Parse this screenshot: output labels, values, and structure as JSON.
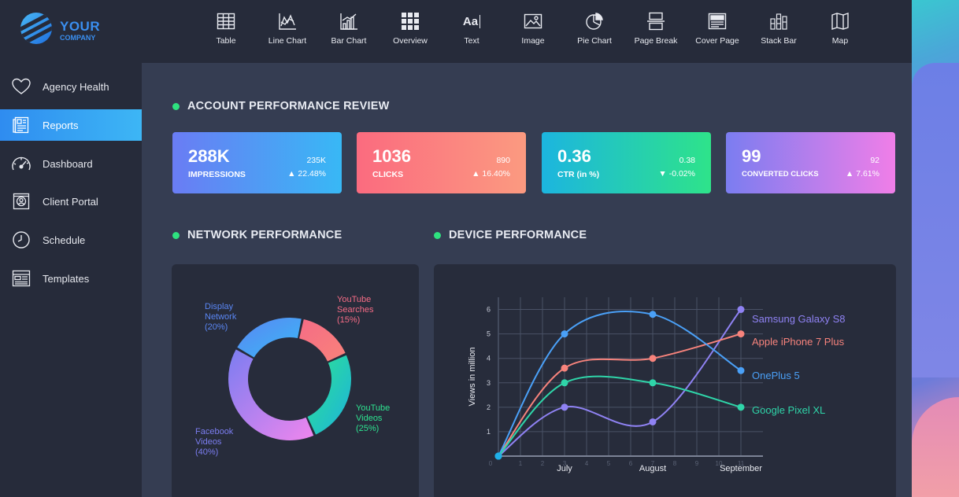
{
  "brand": {
    "line1": "YOUR",
    "line2": "COMPANY"
  },
  "toolbar": [
    {
      "label": "Table",
      "icon": "table-icon"
    },
    {
      "label": "Line Chart",
      "icon": "line-chart-icon"
    },
    {
      "label": "Bar Chart",
      "icon": "bar-chart-icon"
    },
    {
      "label": "Overview",
      "icon": "overview-grid-icon"
    },
    {
      "label": "Text",
      "icon": "text-icon"
    },
    {
      "label": "Image",
      "icon": "image-icon"
    },
    {
      "label": "Pie Chart",
      "icon": "pie-chart-icon"
    },
    {
      "label": "Page Break",
      "icon": "page-break-icon"
    },
    {
      "label": "Cover Page",
      "icon": "cover-page-icon"
    },
    {
      "label": "Stack Bar",
      "icon": "stack-bar-icon"
    },
    {
      "label": "Map",
      "icon": "map-icon"
    }
  ],
  "tool_icon_text": "Aa",
  "sidebar": [
    {
      "label": "Agency Health",
      "icon": "heart-icon"
    },
    {
      "label": "Reports",
      "icon": "reports-icon",
      "active": true
    },
    {
      "label": "Dashboard",
      "icon": "gauge-icon"
    },
    {
      "label": "Client Portal",
      "icon": "portal-icon"
    },
    {
      "label": "Schedule",
      "icon": "clock-icon"
    },
    {
      "label": "Templates",
      "icon": "templates-icon"
    }
  ],
  "sections": {
    "account": "ACCOUNT PERFORMANCE REVIEW",
    "network": "NETWORK PERFORMANCE",
    "device": "DEVICE PERFORMANCE"
  },
  "kpis": [
    {
      "value": "288K",
      "name": "IMPRESSIONS",
      "previous": "235K",
      "change": "▲ 22.48%",
      "colors": [
        "#6a7cf4",
        "#38b8f5"
      ]
    },
    {
      "value": "1036",
      "name": "CLICKS",
      "previous": "890",
      "change": "▲ 16.40%",
      "colors": [
        "#fb6b7f",
        "#fb9a80"
      ]
    },
    {
      "value": "0.36",
      "name": "CTR (in %)",
      "previous": "0.38",
      "change": "▼ -0.02%",
      "colors": [
        "#1cb5df",
        "#2ee38a"
      ]
    },
    {
      "value": "99",
      "name": "CONVERTED CLICKS",
      "previous": "92",
      "change": "▲ 7.61%",
      "colors": [
        "#7b7df0",
        "#f07ee8"
      ]
    }
  ],
  "chart_data": [
    {
      "type": "pie",
      "title": "NETWORK PERFORMANCE",
      "style": "donut",
      "slices": [
        {
          "name": "YouTube Searches",
          "value": 15,
          "pct_label": "(15%)",
          "label_lines": [
            "YouTube",
            "Searches"
          ],
          "color": "#f56c86",
          "color2": "#f9827a"
        },
        {
          "name": "YouTube Videos",
          "value": 25,
          "pct_label": "(25%)",
          "label_lines": [
            "YouTube",
            "Videos"
          ],
          "color": "#2ee390",
          "color2": "#1cb3de"
        },
        {
          "name": "Facebook Videos",
          "value": 40,
          "pct_label": "(40%)",
          "label_lines": [
            "Facebook",
            "Videos"
          ],
          "color": "#7b7df0",
          "color2": "#ef86ee"
        },
        {
          "name": "Display Network",
          "value": 20,
          "pct_label": "(20%)",
          "label_lines": [
            "Display",
            "Network"
          ],
          "color": "#5a86f3",
          "color2": "#3ab8f6"
        }
      ]
    },
    {
      "type": "line",
      "title": "DEVICE PERFORMANCE",
      "ylabel": "Views in million",
      "ylim": [
        0,
        6.5
      ],
      "xlim": [
        0,
        12
      ],
      "y_ticks": [
        "1",
        "2",
        "3",
        "4",
        "5",
        "6"
      ],
      "x_ticks": [
        "0",
        "1",
        "2",
        "3",
        "4",
        "5",
        "6",
        "7",
        "8",
        "9",
        "10",
        "11"
      ],
      "month_labels": [
        {
          "label": "July",
          "x": 3
        },
        {
          "label": "August",
          "x": 7
        },
        {
          "label": "September",
          "x": 11
        }
      ],
      "x": [
        0,
        3,
        7,
        11
      ],
      "series": [
        {
          "name": "Samsung Galaxy S8",
          "values": [
            0,
            2,
            1.4,
            6
          ],
          "color": "#8f82f3"
        },
        {
          "name": "Apple iPhone 7 Plus",
          "values": [
            0,
            3.6,
            4,
            5
          ],
          "color": "#f7837c"
        },
        {
          "name": "OnePlus 5",
          "values": [
            0,
            5,
            5.8,
            3.5
          ],
          "color": "#4aa0f7"
        },
        {
          "name": "Google Pixel XL",
          "values": [
            0,
            3,
            3,
            2
          ],
          "color": "#2fd5a9"
        }
      ]
    }
  ]
}
